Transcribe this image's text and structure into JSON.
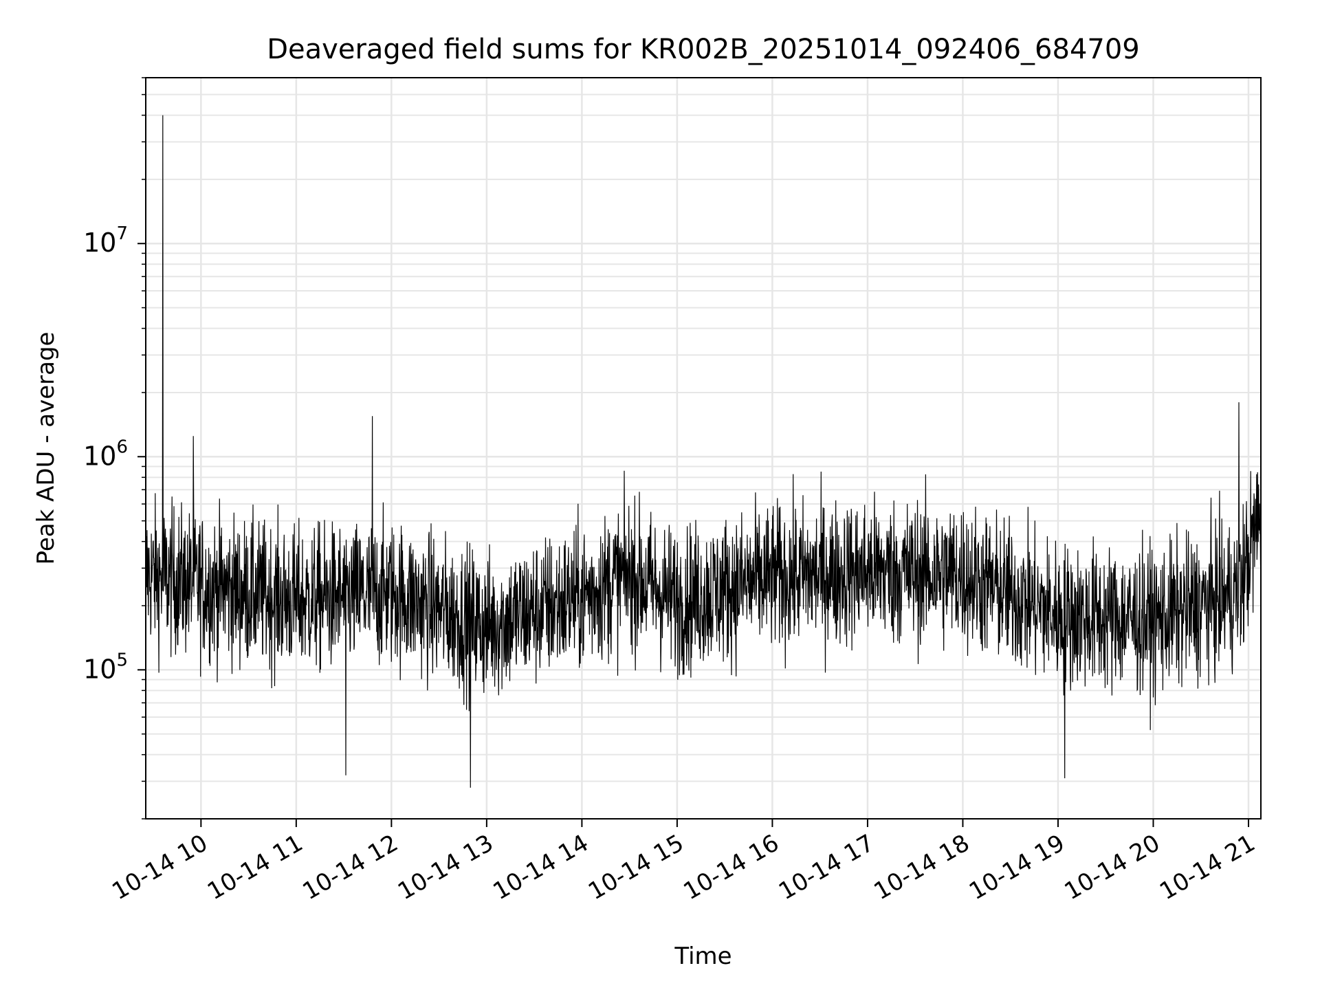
{
  "chart_data": {
    "type": "line",
    "title": "Deaveraged field sums for KR002B_20251014_092406_684709",
    "xlabel": "Time",
    "ylabel": "Peak ADU - average",
    "yscale": "log",
    "ylim": [
      20000,
      60000000
    ],
    "xlim_hours": [
      9.42,
      21.13
    ],
    "grid": true,
    "x_ticks": [
      {
        "hour": 10,
        "label": "10-14 10"
      },
      {
        "hour": 11,
        "label": "10-14 11"
      },
      {
        "hour": 12,
        "label": "10-14 12"
      },
      {
        "hour": 13,
        "label": "10-14 13"
      },
      {
        "hour": 14,
        "label": "10-14 14"
      },
      {
        "hour": 15,
        "label": "10-14 15"
      },
      {
        "hour": 16,
        "label": "10-14 16"
      },
      {
        "hour": 17,
        "label": "10-14 17"
      },
      {
        "hour": 18,
        "label": "10-14 18"
      },
      {
        "hour": 19,
        "label": "10-14 19"
      },
      {
        "hour": 20,
        "label": "10-14 20"
      },
      {
        "hour": 21,
        "label": "10-14 21"
      }
    ],
    "y_ticks": [
      {
        "value": 100000,
        "base": "10",
        "exp": "5"
      },
      {
        "value": 1000000,
        "base": "10",
        "exp": "6"
      },
      {
        "value": 10000000,
        "base": "10",
        "exp": "7"
      }
    ],
    "line_color": "#000000",
    "grid_color": "#e6e6e6",
    "baseline_profile": [
      {
        "hour": 9.42,
        "value": 280000
      },
      {
        "hour": 10.0,
        "value": 250000
      },
      {
        "hour": 11.0,
        "value": 210000
      },
      {
        "hour": 12.0,
        "value": 230000
      },
      {
        "hour": 13.0,
        "value": 160000
      },
      {
        "hour": 14.0,
        "value": 220000
      },
      {
        "hour": 14.5,
        "value": 280000
      },
      {
        "hour": 15.0,
        "value": 210000
      },
      {
        "hour": 16.0,
        "value": 270000
      },
      {
        "hour": 17.0,
        "value": 290000
      },
      {
        "hour": 18.0,
        "value": 280000
      },
      {
        "hour": 19.0,
        "value": 180000
      },
      {
        "hour": 20.0,
        "value": 170000
      },
      {
        "hour": 20.9,
        "value": 230000
      },
      {
        "hour": 21.1,
        "value": 500000
      }
    ],
    "spikes": [
      {
        "hour": 9.6,
        "value": 40000000
      },
      {
        "hour": 9.92,
        "value": 1250000
      },
      {
        "hour": 11.8,
        "value": 1550000
      },
      {
        "hour": 20.9,
        "value": 1800000
      },
      {
        "hour": 12.83,
        "value": 28000
      },
      {
        "hour": 11.52,
        "value": 32000
      },
      {
        "hour": 19.07,
        "value": 31000
      }
    ]
  }
}
